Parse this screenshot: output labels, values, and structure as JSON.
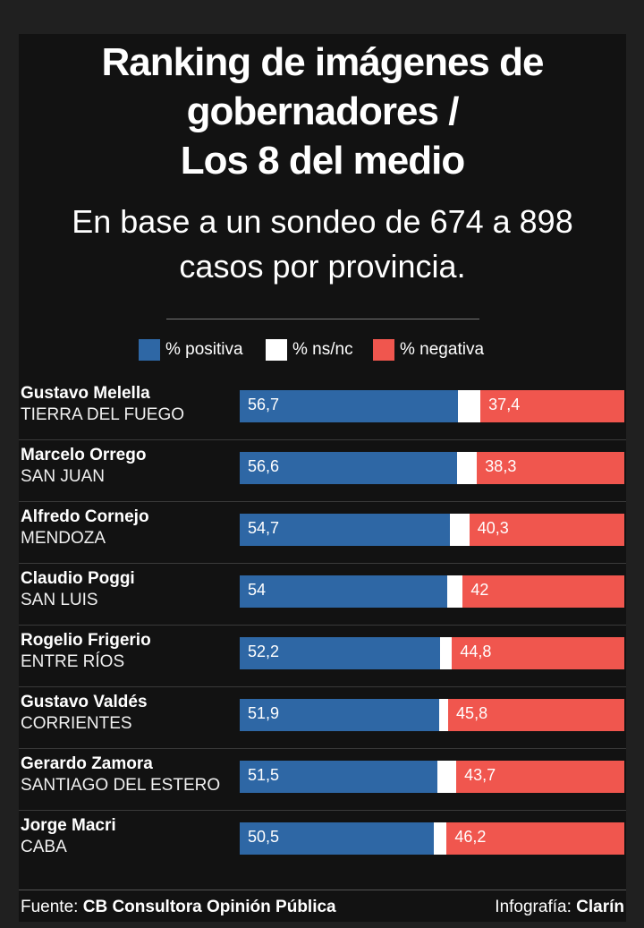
{
  "title_lines": [
    "Ranking de imágenes de",
    "gobernadores /",
    "Los 8 del medio"
  ],
  "subtitle_lines": [
    "En base a un sondeo de 674 a 898",
    "casos por provincia."
  ],
  "legend": [
    {
      "label": "% positiva",
      "color": "#2e67a5"
    },
    {
      "label": "% ns/nc",
      "color": "#ffffff"
    },
    {
      "label": "% negativa",
      "color": "#f0564e"
    }
  ],
  "chart_data": {
    "type": "bar",
    "orientation": "horizontal-stacked",
    "title": "Ranking de imágenes de gobernadores / Los 8 del medio",
    "subtitle": "En base a un sondeo de 674 a 898 casos por provincia.",
    "categories": [
      {
        "name": "Gustavo Melella",
        "province": "TIERRA DEL FUEGO"
      },
      {
        "name": "Marcelo Orrego",
        "province": "SAN JUAN"
      },
      {
        "name": "Alfredo Cornejo",
        "province": "MENDOZA"
      },
      {
        "name": "Claudio Poggi",
        "province": "SAN LUIS"
      },
      {
        "name": "Rogelio Frigerio",
        "province": "ENTRE RÍOS"
      },
      {
        "name": "Gustavo Valdés",
        "province": "CORRIENTES"
      },
      {
        "name": "Gerardo Zamora",
        "province": "SANTIAGO DEL ESTERO"
      },
      {
        "name": "Jorge Macri",
        "province": "CABA"
      }
    ],
    "series": [
      {
        "name": "% positiva",
        "values": [
          56.7,
          56.6,
          54.7,
          54,
          52.2,
          51.9,
          51.5,
          50.5
        ],
        "labels": [
          "56,7",
          "56,6",
          "54,7",
          "54",
          "52,2",
          "51,9",
          "51,5",
          "50,5"
        ]
      },
      {
        "name": "% ns/nc",
        "values": [
          5.9,
          5.1,
          5.0,
          4.0,
          3.0,
          2.3,
          4.8,
          3.3
        ]
      },
      {
        "name": "% negativa",
        "values": [
          37.4,
          38.3,
          40.3,
          42,
          44.8,
          45.8,
          43.7,
          46.2
        ],
        "labels": [
          "37,4",
          "38,3",
          "40,3",
          "42",
          "44,8",
          "45,8",
          "43,7",
          "46,2"
        ]
      }
    ],
    "xlim": [
      0,
      100
    ],
    "legend_position": "top"
  },
  "footer": {
    "source_prefix": "Fuente: ",
    "source_name": "CB Consultora Opinión Pública",
    "credit_prefix": "Infografía: ",
    "credit_name": "Clarín"
  }
}
